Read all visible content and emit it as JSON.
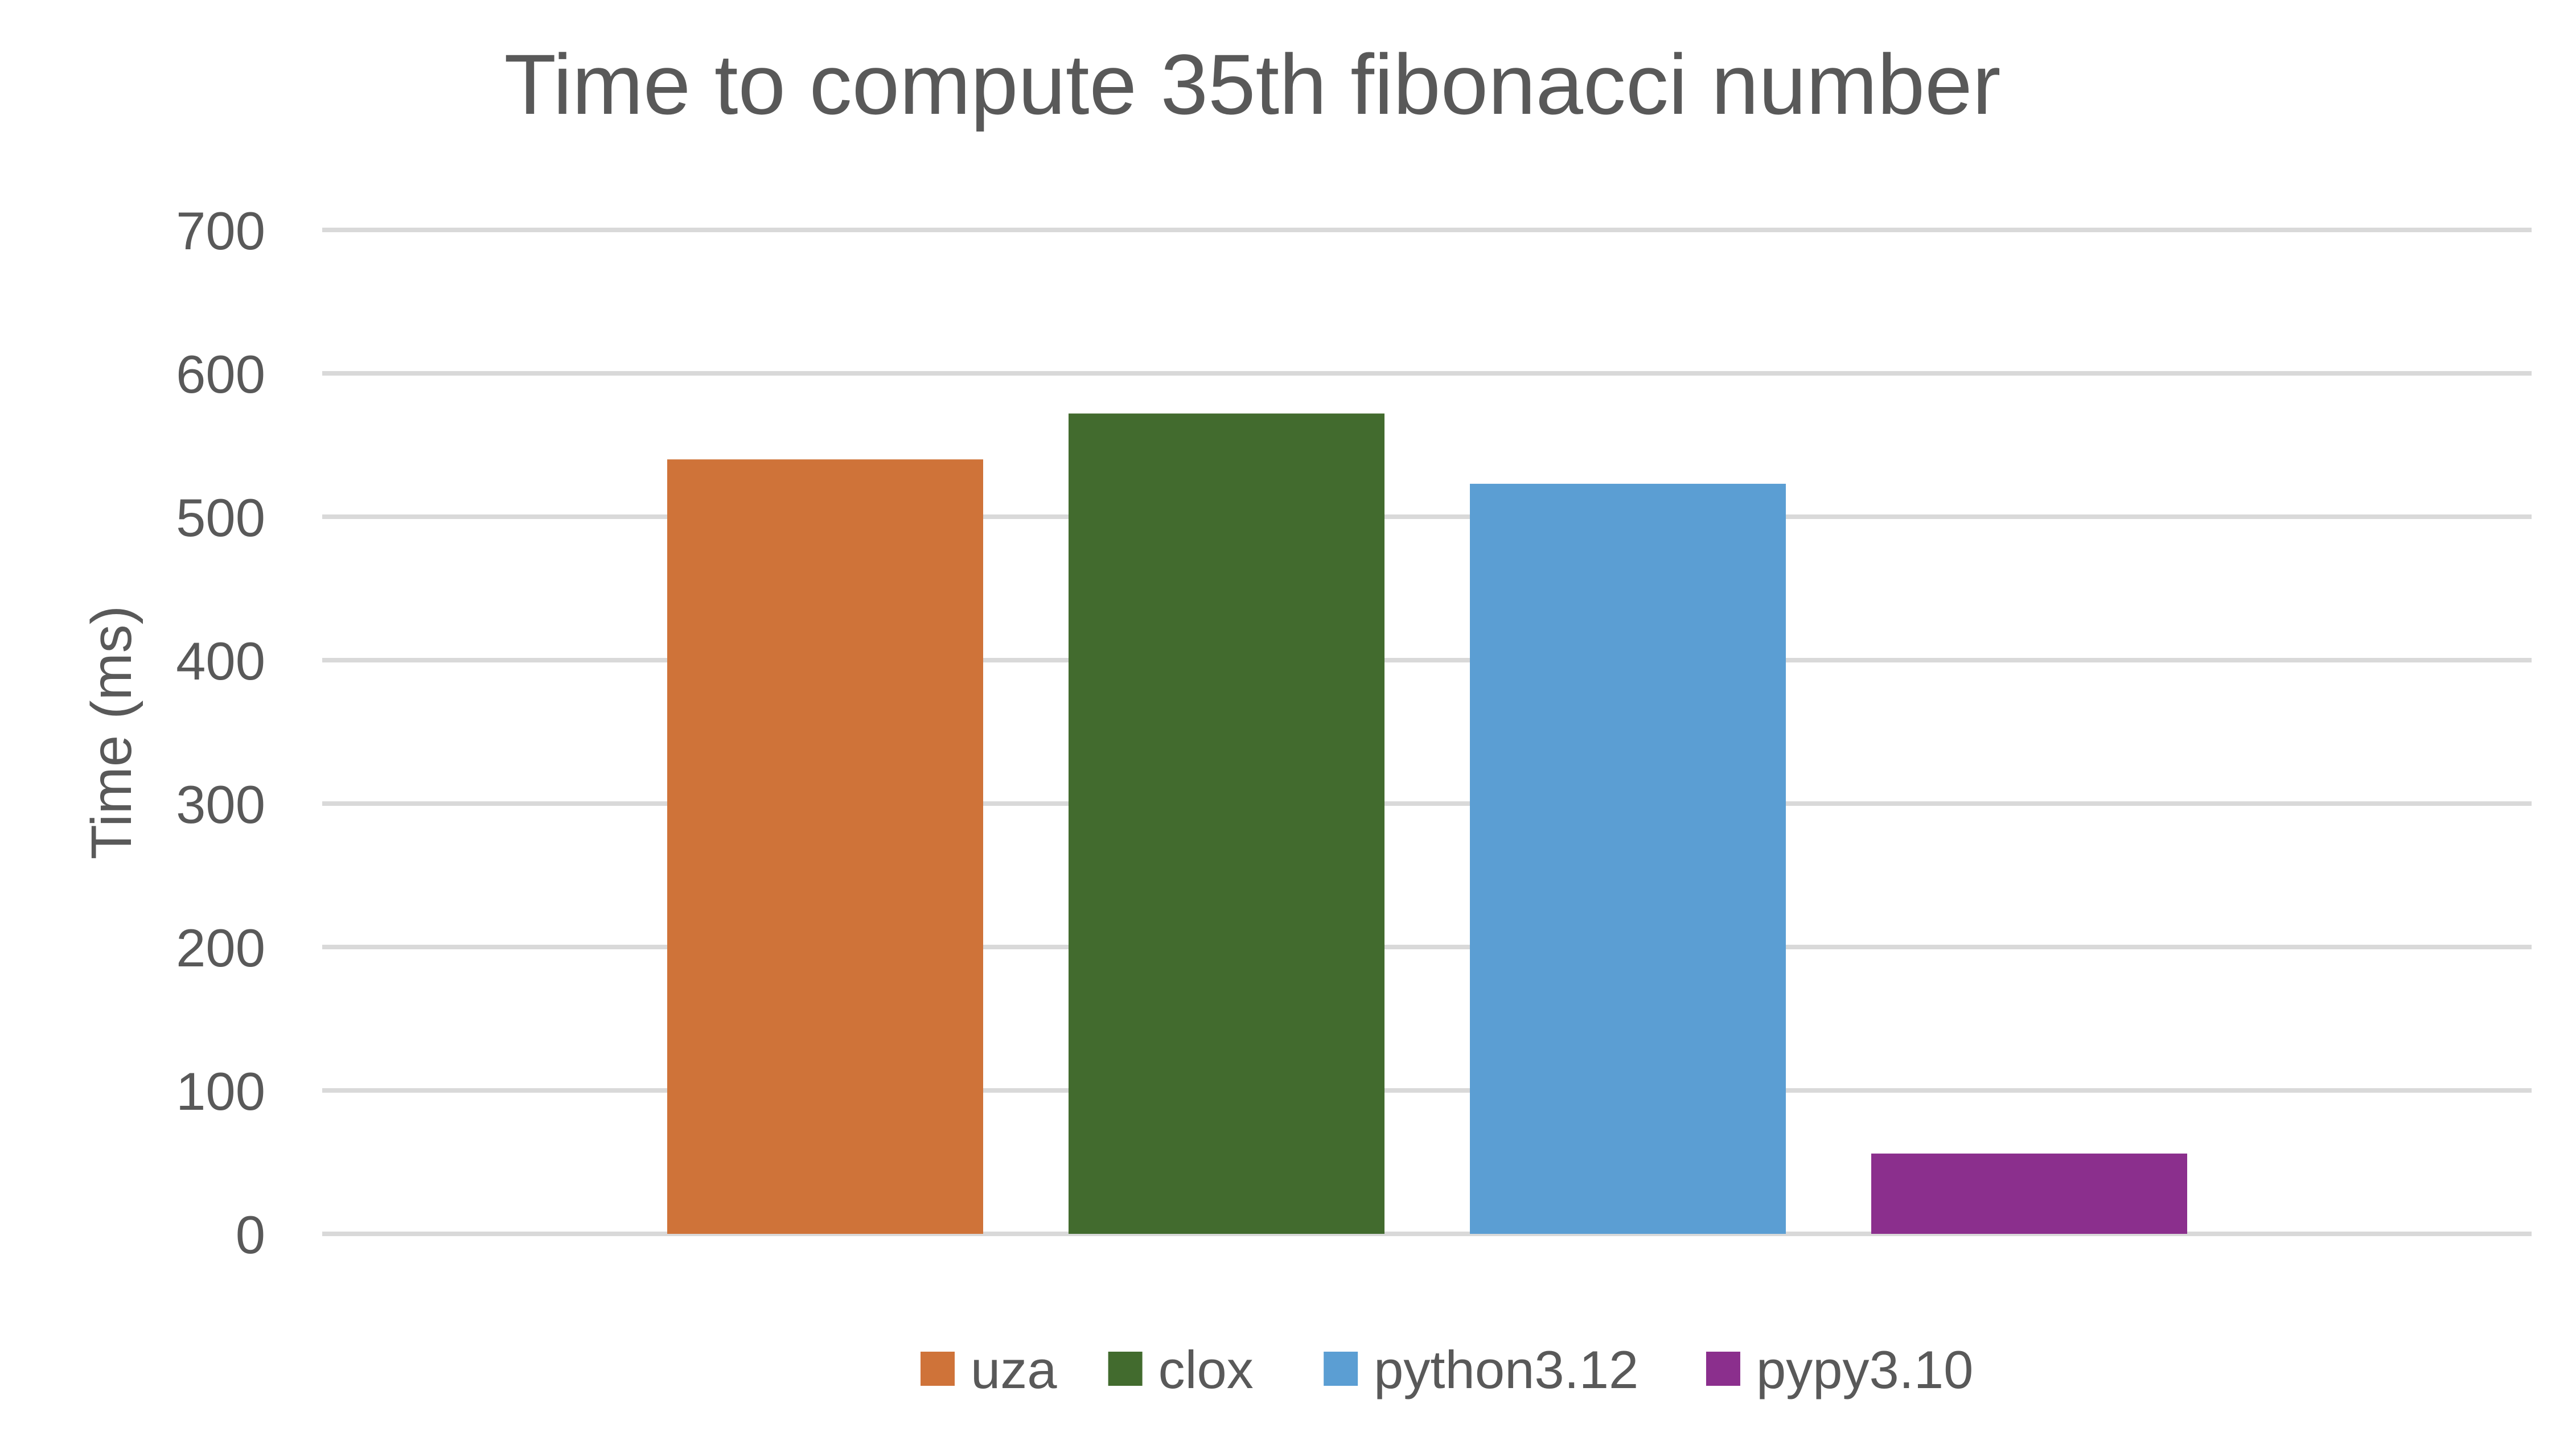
{
  "chart_data": {
    "type": "bar",
    "title": "Time to compute 35th fibonacci number",
    "xlabel": "",
    "ylabel": "Time (ms)",
    "ylim": [
      0,
      700
    ],
    "yticks": [
      0,
      100,
      200,
      300,
      400,
      500,
      600,
      700
    ],
    "grid": true,
    "legend_position": "bottom",
    "categories": [
      ""
    ],
    "series": [
      {
        "name": "uza",
        "values": [
          540
        ],
        "color": "#CF7339"
      },
      {
        "name": "clox",
        "values": [
          572
        ],
        "color": "#426B2E"
      },
      {
        "name": "python3.12",
        "values": [
          523
        ],
        "color": "#5B9ED3"
      },
      {
        "name": "pypy3.10",
        "values": [
          56
        ],
        "color": "#8B2F8D"
      }
    ]
  }
}
